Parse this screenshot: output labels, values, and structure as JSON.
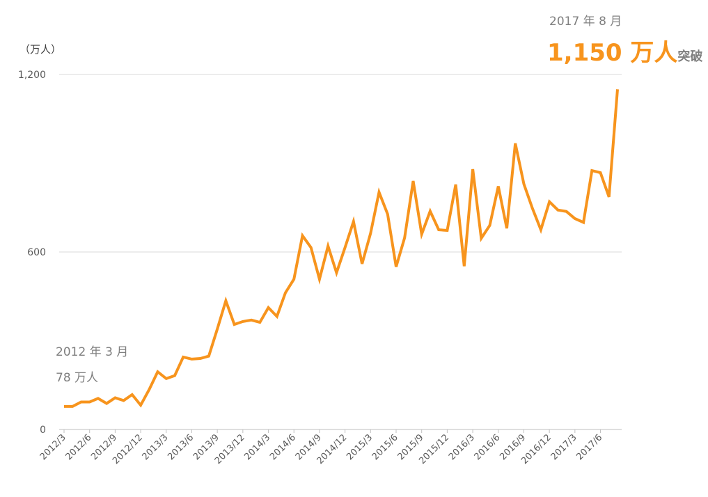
{
  "chart_data": {
    "type": "line",
    "unit_label": "（万人）",
    "y_ticks": [
      "0",
      "600",
      "1,200"
    ],
    "y_tick_values": [
      0,
      600,
      1200
    ],
    "ylim": [
      0,
      1200
    ],
    "grid": true,
    "line_color": "#f7941d",
    "x_tick_labels": [
      "2012/3",
      "2012/6",
      "2012/9",
      "2012/12",
      "2013/3",
      "2013/6",
      "2013/9",
      "2013/12",
      "2014/3",
      "2014/6",
      "2014/9",
      "2014/12",
      "2015/3",
      "2015/6",
      "2015/9",
      "2015/12",
      "2016/3",
      "2016/6",
      "2016/9",
      "2016/12",
      "2017/3",
      "2017/6"
    ],
    "x": [
      "2012/3",
      "2012/4",
      "2012/5",
      "2012/6",
      "2012/7",
      "2012/8",
      "2012/9",
      "2012/10",
      "2012/11",
      "2012/12",
      "2013/1",
      "2013/2",
      "2013/3",
      "2013/4",
      "2013/5",
      "2013/6",
      "2013/7",
      "2013/8",
      "2013/9",
      "2013/10",
      "2013/11",
      "2013/12",
      "2014/1",
      "2014/2",
      "2014/3",
      "2014/4",
      "2014/5",
      "2014/6",
      "2014/7",
      "2014/8",
      "2014/9",
      "2014/10",
      "2014/11",
      "2014/12",
      "2015/1",
      "2015/2",
      "2015/3",
      "2015/4",
      "2015/5",
      "2015/6",
      "2015/7",
      "2015/8",
      "2015/9",
      "2015/10",
      "2015/11",
      "2015/12",
      "2016/1",
      "2016/2",
      "2016/3",
      "2016/4",
      "2016/5",
      "2016/6",
      "2016/7",
      "2016/8",
      "2016/9",
      "2016/10",
      "2016/11",
      "2016/12",
      "2017/1",
      "2017/2",
      "2017/3",
      "2017/4",
      "2017/5",
      "2017/6",
      "2017/7",
      "2017/8"
    ],
    "values": [
      78,
      78,
      93,
      93,
      105,
      88,
      107,
      98,
      118,
      82,
      135,
      195,
      172,
      182,
      245,
      238,
      240,
      248,
      340,
      435,
      355,
      365,
      370,
      362,
      412,
      382,
      462,
      508,
      655,
      615,
      508,
      620,
      530,
      615,
      703,
      560,
      663,
      802,
      728,
      550,
      648,
      840,
      660,
      738,
      675,
      673,
      828,
      552,
      880,
      646,
      690,
      822,
      680,
      967,
      830,
      748,
      675,
      770,
      742,
      737,
      713,
      700,
      875,
      868,
      786,
      1150
    ],
    "annotations": {
      "start_date": "2012 年 3 月",
      "start_value": "78 万人",
      "end_date": "2017 年 8 月",
      "end_value": "1,150 万人",
      "end_suffix": "突破"
    }
  }
}
